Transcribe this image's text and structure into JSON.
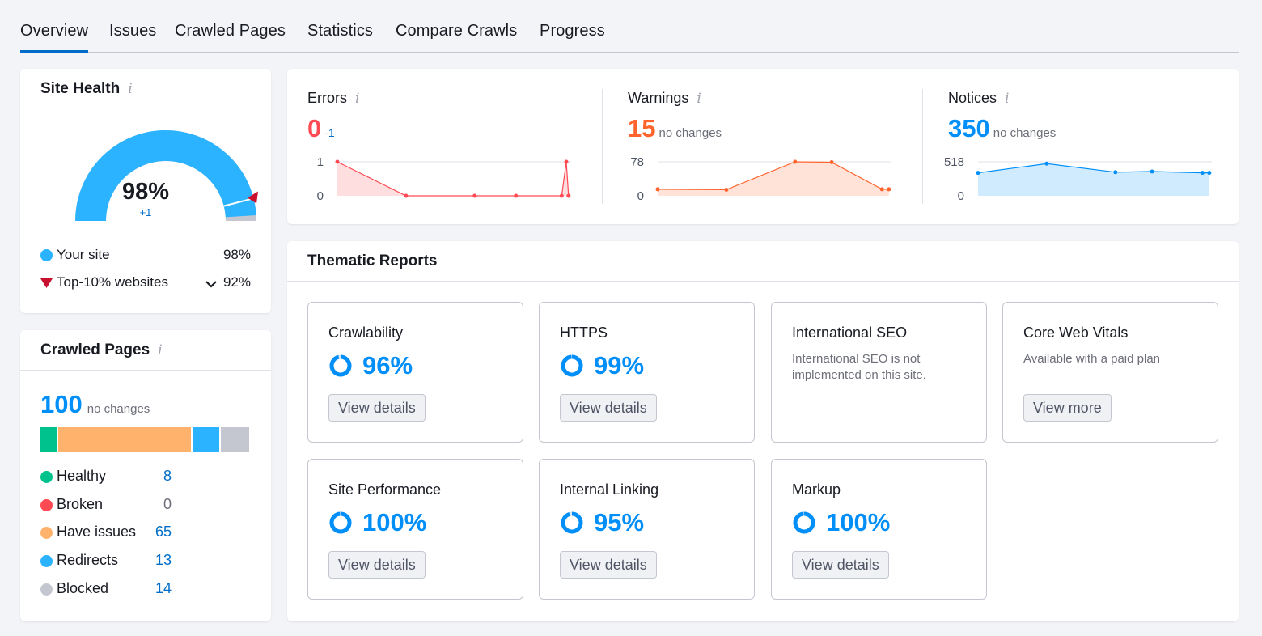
{
  "tabs": [
    {
      "label": "Overview",
      "active": true
    },
    {
      "label": "Issues"
    },
    {
      "label": "Crawled Pages"
    },
    {
      "label": "Statistics"
    },
    {
      "label": "Compare Crawls"
    },
    {
      "label": "Progress"
    }
  ],
  "site_health": {
    "title": "Site Health",
    "info": "i",
    "score": "98%",
    "delta": "+1",
    "gauge_fraction": 0.98,
    "gauge_color": "#2bb3ff",
    "legend": [
      {
        "label": "Your site",
        "value": "98%",
        "color": "#2bb3ff"
      },
      {
        "label": "Top-10% websites",
        "value": "92%",
        "color": "#c8102e"
      }
    ]
  },
  "crawled_pages": {
    "title": "Crawled Pages",
    "info": "i",
    "total": "100",
    "change": "no changes",
    "segments": [
      {
        "label": "Healthy",
        "value": "8",
        "color": "#00c28c"
      },
      {
        "label": "Broken",
        "value": "0",
        "color": "#ff4953"
      },
      {
        "label": "Have issues",
        "value": "65",
        "color": "#ffb26b"
      },
      {
        "label": "Redirects",
        "value": "13",
        "color": "#2bb3ff"
      },
      {
        "label": "Blocked",
        "value": "14",
        "color": "#c4c7cf"
      }
    ]
  },
  "issues": {
    "errors": {
      "label": "Errors",
      "info": "i",
      "value": "0",
      "change": "-1",
      "color": "#ff4953",
      "ymax": "1",
      "ymin": "0",
      "points": [
        1,
        0,
        0,
        0,
        0,
        1,
        0
      ]
    },
    "warnings": {
      "label": "Warnings",
      "info": "i",
      "value": "15",
      "change": "no changes",
      "color": "#ff642d",
      "ymax": "78",
      "ymin": "0",
      "points": [
        15,
        14,
        78,
        77,
        15,
        15
      ]
    },
    "notices": {
      "label": "Notices",
      "info": "i",
      "value": "350",
      "change": "no changes",
      "color": "#008ff8",
      "ymax": "518",
      "ymin": "0",
      "points": [
        350,
        490,
        360,
        370,
        350,
        350
      ]
    }
  },
  "thematic": {
    "title": "Thematic Reports",
    "reports": [
      {
        "title": "Crawlability",
        "score": "96%",
        "fraction": 0.96,
        "button": "View details"
      },
      {
        "title": "HTTPS",
        "score": "99%",
        "fraction": 0.99,
        "button": "View details"
      },
      {
        "title": "International SEO",
        "description": "International SEO is not implemented on this site."
      },
      {
        "title": "Core Web Vitals",
        "description": "Available with a paid plan",
        "button": "View more"
      },
      {
        "title": "Site Performance",
        "score": "100%",
        "fraction": 1.0,
        "button": "View details"
      },
      {
        "title": "Internal Linking",
        "score": "95%",
        "fraction": 0.95,
        "button": "View details"
      },
      {
        "title": "Markup",
        "score": "100%",
        "fraction": 1.0,
        "button": "View details"
      }
    ],
    "score_color": "#008ff8"
  }
}
